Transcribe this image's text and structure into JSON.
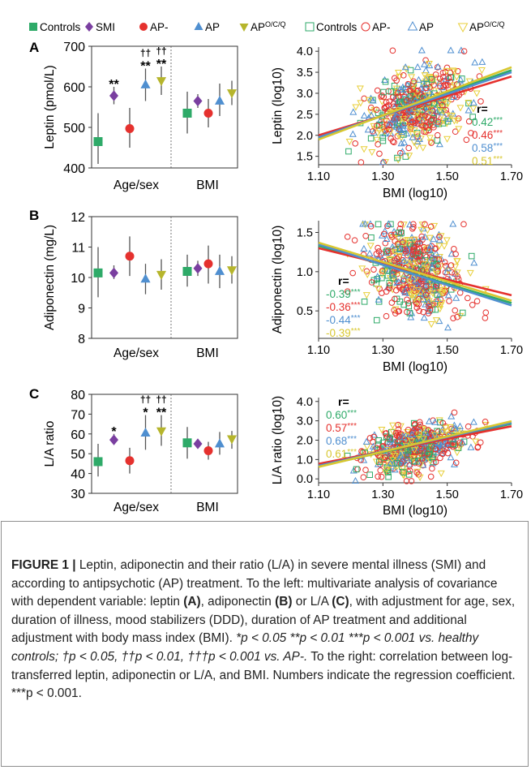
{
  "left_legend": {
    "items": [
      {
        "label": "Controls",
        "color": "#2eaa68",
        "shape": "square"
      },
      {
        "label": "SMI",
        "color": "#7a3fa0",
        "shape": "diamond"
      },
      {
        "label": "AP-",
        "color": "#e5312e",
        "shape": "circle"
      },
      {
        "label": "AP",
        "color": "#4f8fd0",
        "shape": "triangle-up"
      },
      {
        "label": "AP",
        "label_sup": "O/C/Q",
        "color": "#b6b52c",
        "shape": "triangle-down"
      }
    ]
  },
  "right_legend": {
    "items": [
      {
        "label": "Controls",
        "color": "#2eaa68",
        "shape": "square-open"
      },
      {
        "label": "AP-",
        "color": "#e5312e",
        "shape": "circle-open"
      },
      {
        "label": "AP",
        "color": "#4f8fd0",
        "shape": "triangle-up-open"
      },
      {
        "label": "AP",
        "label_sup": "O/C/Q",
        "color": "#e8cf3a",
        "shape": "triangle-down-open"
      }
    ]
  },
  "chart_data": [
    {
      "panel": "A",
      "type": "scatter",
      "subtype": "point-with-error-bars",
      "ylabel": "Leptin (pmol/L)",
      "ylim": [
        400,
        700
      ],
      "yticks": [
        "400",
        "500",
        "600",
        "700"
      ],
      "groups": [
        "Age/sex",
        "BMI"
      ],
      "series": [
        {
          "name": "Controls",
          "values": [
            465,
            535
          ],
          "low": [
            410,
            485
          ],
          "high": [
            535,
            588
          ]
        },
        {
          "name": "SMI",
          "values": [
            578,
            565
          ],
          "low": [
            557,
            548
          ],
          "high": [
            600,
            582
          ]
        },
        {
          "name": "AP-",
          "values": [
            497,
            535
          ],
          "low": [
            450,
            500
          ],
          "high": [
            548,
            570
          ]
        },
        {
          "name": "AP",
          "values": [
            605,
            565
          ],
          "low": [
            565,
            528
          ],
          "high": [
            645,
            608
          ]
        },
        {
          "name": "APO/C/Q",
          "values": [
            615,
            585
          ],
          "low": [
            580,
            555
          ],
          "high": [
            650,
            615
          ]
        }
      ],
      "annotations": [
        {
          "group": "Age/sex",
          "series": "SMI",
          "text": "**"
        },
        {
          "group": "Age/sex",
          "series": "AP",
          "text": "††\n**"
        },
        {
          "group": "Age/sex",
          "series": "APO/C/Q",
          "text": "††\n**"
        }
      ]
    },
    {
      "panel": "A-right",
      "type": "scatter",
      "ylabel": "Leptin (log10)",
      "xlabel": "BMI (log10)",
      "xlim": [
        1.1,
        1.7
      ],
      "ylim": [
        1.3,
        4.1
      ],
      "xticks": [
        "1.10",
        "1.30",
        "1.50",
        "1.70"
      ],
      "yticks": [
        "1.5",
        "2.0",
        "2.5",
        "3.0",
        "3.5",
        "4.0"
      ],
      "cloud": {
        "x_center": 1.4,
        "x_spread": 0.075,
        "y_center": 2.65,
        "y_spread": 0.45
      },
      "regression": {
        "title": "r=",
        "position": "bottom-right",
        "entries": [
          {
            "r": "0.42",
            "stars": "***",
            "series": "Controls"
          },
          {
            "r": "0.46",
            "stars": "***",
            "series": "AP-"
          },
          {
            "r": "0.58",
            "stars": "***",
            "series": "AP"
          },
          {
            "r": "0.51",
            "stars": "***",
            "series": "APO/C/Q"
          }
        ]
      },
      "lines": [
        {
          "series": "Controls",
          "y_at": [
            1.93,
            3.55
          ]
        },
        {
          "series": "AP-",
          "y_at": [
            2.0,
            3.4
          ]
        },
        {
          "series": "AP",
          "y_at": [
            1.95,
            3.5
          ]
        },
        {
          "series": "APO/C/Q",
          "y_at": [
            1.9,
            3.62
          ]
        }
      ]
    },
    {
      "panel": "B",
      "type": "scatter",
      "subtype": "point-with-error-bars",
      "ylabel": "Adiponectin (mg/L)",
      "ylim": [
        8,
        12
      ],
      "yticks": [
        "8",
        "9",
        "10",
        "11",
        "12"
      ],
      "groups": [
        "Age/sex",
        "BMI"
      ],
      "series": [
        {
          "name": "Controls",
          "values": [
            10.15,
            10.2
          ],
          "low": [
            9.35,
            9.7
          ],
          "high": [
            11.0,
            10.75
          ]
        },
        {
          "name": "SMI",
          "values": [
            10.15,
            10.3
          ],
          "low": [
            9.95,
            10.05
          ],
          "high": [
            10.4,
            10.55
          ]
        },
        {
          "name": "AP-",
          "values": [
            10.7,
            10.45
          ],
          "low": [
            10.05,
            9.8
          ],
          "high": [
            11.35,
            11.05
          ]
        },
        {
          "name": "AP",
          "values": [
            9.95,
            10.2
          ],
          "low": [
            9.45,
            9.65
          ],
          "high": [
            10.45,
            10.75
          ]
        },
        {
          "name": "APO/C/Q",
          "values": [
            10.1,
            10.25
          ],
          "low": [
            9.6,
            9.8
          ],
          "high": [
            10.6,
            10.7
          ]
        }
      ],
      "annotations": []
    },
    {
      "panel": "B-right",
      "type": "scatter",
      "ylabel": "Adiponectin (log10)",
      "xlabel": "BMI (log10)",
      "xlim": [
        1.1,
        1.7
      ],
      "ylim": [
        0.15,
        1.65
      ],
      "xticks": [
        "1.10",
        "1.30",
        "1.50",
        "1.70"
      ],
      "yticks": [
        "0.5",
        "1.0",
        "1.5"
      ],
      "cloud": {
        "x_center": 1.4,
        "x_spread": 0.075,
        "y_center": 1.0,
        "y_spread": 0.28
      },
      "regression": {
        "title": "r=",
        "position": "bottom-left",
        "entries": [
          {
            "r": "-0.39",
            "stars": "***",
            "series": "Controls"
          },
          {
            "r": "-0.36",
            "stars": "***",
            "series": "AP-"
          },
          {
            "r": "-0.44",
            "stars": "***",
            "series": "AP"
          },
          {
            "r": "-0.39",
            "stars": "***",
            "series": "APO/C/Q"
          }
        ]
      },
      "lines": [
        {
          "series": "Controls",
          "y_at": [
            1.33,
            0.6
          ]
        },
        {
          "series": "AP-",
          "y_at": [
            1.3,
            0.7
          ]
        },
        {
          "series": "AP",
          "y_at": [
            1.35,
            0.57
          ]
        },
        {
          "series": "APO/C/Q",
          "y_at": [
            1.37,
            0.63
          ]
        }
      ]
    },
    {
      "panel": "C",
      "type": "scatter",
      "subtype": "point-with-error-bars",
      "ylabel": "L/A ratio",
      "ylim": [
        30,
        80
      ],
      "yticks": [
        "30",
        "40",
        "50",
        "60",
        "70",
        "80"
      ],
      "groups": [
        "Age/sex",
        "BMI"
      ],
      "series": [
        {
          "name": "Controls",
          "values": [
            46,
            55.5
          ],
          "low": [
            38.5,
            47.5
          ],
          "high": [
            55,
            63.5
          ]
        },
        {
          "name": "SMI",
          "values": [
            57,
            55
          ],
          "low": [
            54.5,
            53
          ],
          "high": [
            60,
            57.5
          ]
        },
        {
          "name": "AP-",
          "values": [
            46.5,
            51.5
          ],
          "low": [
            40,
            47
          ],
          "high": [
            53,
            56
          ]
        },
        {
          "name": "AP",
          "values": [
            60.5,
            55
          ],
          "low": [
            52,
            49.5
          ],
          "high": [
            69.5,
            61
          ]
        },
        {
          "name": "APO/C/Q",
          "values": [
            61.5,
            57.5
          ],
          "low": [
            54,
            52.5
          ],
          "high": [
            69.5,
            61.5
          ]
        }
      ],
      "annotations": [
        {
          "group": "Age/sex",
          "series": "SMI",
          "text": "*"
        },
        {
          "group": "Age/sex",
          "series": "AP",
          "text": "††\n*"
        },
        {
          "group": "Age/sex",
          "series": "APO/C/Q",
          "text": "††\n**"
        }
      ]
    },
    {
      "panel": "C-right",
      "type": "scatter",
      "ylabel": "L/A ratio (log10)",
      "xlabel": "BMI (log10)",
      "xlim": [
        1.1,
        1.7
      ],
      "ylim": [
        -0.2,
        4.2
      ],
      "xticks": [
        "1.10",
        "1.30",
        "1.50",
        "1.70"
      ],
      "yticks": [
        "0.0",
        "1.0",
        "2.0",
        "3.0",
        "4.0"
      ],
      "cloud": {
        "x_center": 1.4,
        "x_spread": 0.075,
        "y_center": 1.65,
        "y_spread": 0.6
      },
      "regression": {
        "title": "r=",
        "position": "top-left",
        "entries": [
          {
            "r": "0.60",
            "stars": "***",
            "series": "Controls"
          },
          {
            "r": "0.57",
            "stars": "***",
            "series": "AP-"
          },
          {
            "r": "0.68",
            "stars": "***",
            "series": "AP"
          },
          {
            "r": "0.61",
            "stars": "***",
            "series": "APO/C/Q"
          }
        ]
      },
      "lines": [
        {
          "series": "Controls",
          "y_at": [
            0.65,
            2.85
          ]
        },
        {
          "series": "AP-",
          "y_at": [
            0.78,
            2.72
          ]
        },
        {
          "series": "AP",
          "y_at": [
            0.68,
            2.9
          ]
        },
        {
          "series": "APO/C/Q",
          "y_at": [
            0.62,
            2.98
          ]
        }
      ]
    }
  ],
  "caption": {
    "label": "FIGURE 1 |",
    "title": "Leptin, adiponectin and their ratio (L/A) in severe mental illness (SMI) and according to antipsychotic (AP) treatment. To the left: multivariate analysis of covariance with dependent variable: leptin",
    "ref_a": "(A)",
    "mid1": ", adiponectin",
    "ref_b": "(B)",
    "mid2": "or L/A",
    "ref_c": "(C)",
    "body": ", with adjustment for age, sex, duration of illness, mood stabilizers (DDD), duration of AP treatment and additional adjustment with body mass index (BMI).",
    "stats1": "*p < 0.05 **p < 0.01 ***p < 0.001 vs. healthy controls;",
    "stats2": "†p < 0.05, ††p < 0.01, †††p < 0.001 vs. AP-.",
    "tail": "To the right: correlation between log-transferred leptin, adiponectin or L/A, and BMI. Numbers indicate the regression coefficient. ***p < 0.001."
  }
}
